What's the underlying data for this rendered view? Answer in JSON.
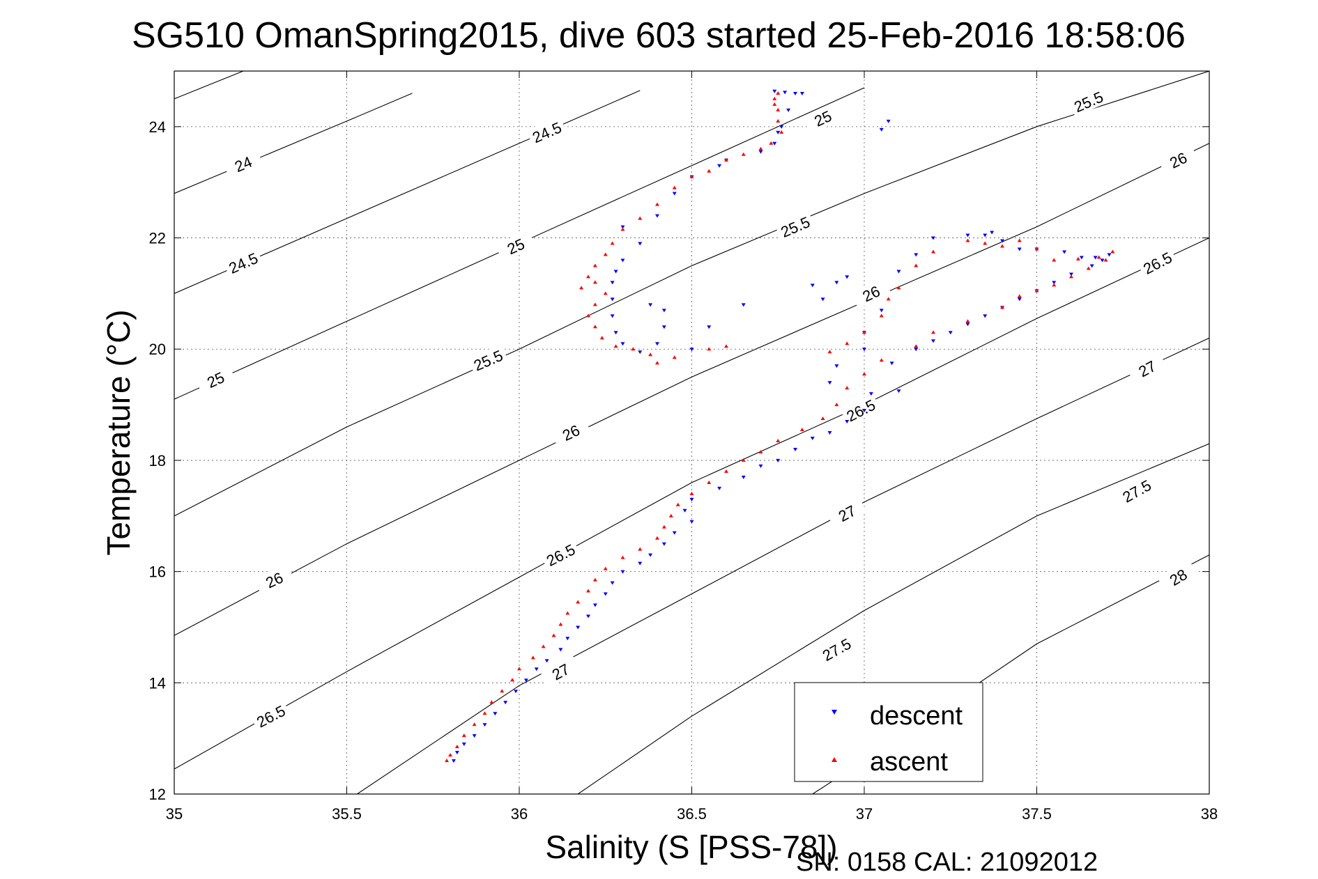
{
  "chart_data": {
    "type": "scatter",
    "title": "SG510 OmanSpring2015, dive 603 started 25-Feb-2016 18:58:06",
    "xlabel": "Salinity (S [PSS-78])",
    "ylabel": "Temperature (°C)",
    "xlim": [
      35,
      38
    ],
    "ylim": [
      12,
      25
    ],
    "x_ticks": [
      35,
      35.5,
      36,
      36.5,
      37,
      37.5,
      38
    ],
    "x_tick_labels": [
      "35",
      "35.5",
      "36",
      "36.5",
      "37",
      "37.5",
      "38"
    ],
    "y_ticks": [
      12,
      14,
      16,
      18,
      20,
      22,
      24
    ],
    "y_tick_labels": [
      "12",
      "14",
      "16",
      "18",
      "20",
      "22",
      "24"
    ],
    "grid": true,
    "legend_position": "bottom-right",
    "footer": "SN: 0158  CAL: 21092012",
    "isopycnals": {
      "line_color": "#000000",
      "lines": [
        {
          "label": "24",
          "points": [
            [
              35.0,
              22.8
            ],
            [
              35.5,
              24.1
            ],
            [
              35.69,
              24.6
            ]
          ],
          "label_at": [
            [
              35.2,
              23.33
            ]
          ]
        },
        {
          "label": "24.5",
          "points": [
            [
              35.0,
              24.5
            ],
            [
              35.2,
              25.0
            ]
          ],
          "label_at": []
        },
        {
          "label": "24.5",
          "points": [
            [
              35.0,
              21.0
            ],
            [
              35.5,
              22.35
            ],
            [
              36.0,
              23.7
            ],
            [
              36.35,
              24.65
            ]
          ],
          "label_at": [
            [
              35.2,
              21.55
            ],
            [
              36.08,
              23.9
            ]
          ]
        },
        {
          "label": "25",
          "points": [
            [
              35.0,
              19.1
            ],
            [
              35.5,
              20.5
            ],
            [
              36.0,
              21.9
            ],
            [
              36.5,
              23.3
            ],
            [
              37.0,
              24.7
            ]
          ],
          "label_at": [
            [
              35.12,
              19.45
            ],
            [
              35.99,
              21.85
            ],
            [
              36.88,
              24.15
            ]
          ]
        },
        {
          "label": "25.5",
          "points": [
            [
              35.0,
              17.0
            ],
            [
              35.5,
              18.6
            ],
            [
              36.0,
              20.0
            ],
            [
              36.5,
              21.5
            ],
            [
              37.0,
              22.8
            ],
            [
              37.5,
              24.0
            ],
            [
              38.0,
              25.0
            ]
          ],
          "label_at": [
            [
              35.91,
              19.8
            ],
            [
              36.8,
              22.2
            ],
            [
              37.65,
              24.45
            ]
          ]
        },
        {
          "label": "26",
          "points": [
            [
              35.0,
              14.85
            ],
            [
              35.5,
              16.5
            ],
            [
              36.0,
              18.0
            ],
            [
              36.5,
              19.5
            ],
            [
              37.0,
              20.85
            ],
            [
              37.5,
              22.2
            ],
            [
              38.0,
              23.7
            ]
          ],
          "label_at": [
            [
              35.29,
              15.85
            ],
            [
              36.15,
              18.5
            ],
            [
              37.02,
              21.0
            ],
            [
              37.91,
              23.4
            ]
          ]
        },
        {
          "label": "26.5",
          "points": [
            [
              35.0,
              12.45
            ],
            [
              35.5,
              14.2
            ],
            [
              36.0,
              15.9
            ],
            [
              36.5,
              17.6
            ],
            [
              37.0,
              19.0
            ],
            [
              37.5,
              20.55
            ],
            [
              38.0,
              22.0
            ]
          ],
          "label_at": [
            [
              35.28,
              13.4
            ],
            [
              36.12,
              16.3
            ],
            [
              36.99,
              18.9
            ],
            [
              37.85,
              21.55
            ]
          ]
        },
        {
          "label": "27",
          "points": [
            [
              35.53,
              12.0
            ],
            [
              36.0,
              13.95
            ],
            [
              36.5,
              15.6
            ],
            [
              37.0,
              17.25
            ],
            [
              37.5,
              18.75
            ],
            [
              38.0,
              20.2
            ]
          ],
          "label_at": [
            [
              36.12,
              14.2
            ],
            [
              36.95,
              17.05
            ],
            [
              37.82,
              19.65
            ]
          ]
        },
        {
          "label": "27.5",
          "points": [
            [
              36.17,
              12.0
            ],
            [
              36.5,
              13.4
            ],
            [
              37.0,
              15.3
            ],
            [
              37.5,
              17.0
            ],
            [
              38.0,
              18.3
            ]
          ],
          "label_at": [
            [
              36.92,
              14.6
            ],
            [
              37.79,
              17.45
            ]
          ]
        },
        {
          "label": "28",
          "points": [
            [
              36.85,
              12.0
            ],
            [
              37.0,
              12.6
            ],
            [
              37.5,
              14.7
            ],
            [
              38.0,
              16.3
            ]
          ],
          "label_at": [
            [
              37.91,
              15.9
            ]
          ]
        }
      ]
    },
    "series": [
      {
        "name": "descent",
        "color": "#0000ff",
        "marker": "triangle-down",
        "points": [
          [
            36.8,
            24.6
          ],
          [
            36.77,
            24.62
          ],
          [
            36.74,
            24.64
          ],
          [
            36.82,
            24.6
          ],
          [
            36.78,
            24.3
          ],
          [
            36.76,
            24.0
          ],
          [
            36.75,
            23.9
          ],
          [
            36.74,
            23.7
          ],
          [
            36.7,
            23.55
          ],
          [
            36.6,
            23.4
          ],
          [
            36.58,
            23.3
          ],
          [
            36.5,
            23.1
          ],
          [
            36.45,
            22.8
          ],
          [
            36.4,
            22.4
          ],
          [
            36.3,
            22.2
          ],
          [
            36.35,
            21.9
          ],
          [
            36.3,
            21.6
          ],
          [
            36.28,
            21.4
          ],
          [
            36.27,
            21.2
          ],
          [
            36.27,
            20.9
          ],
          [
            36.27,
            20.6
          ],
          [
            36.28,
            20.3
          ],
          [
            36.3,
            20.1
          ],
          [
            36.35,
            19.95
          ],
          [
            36.4,
            20.1
          ],
          [
            36.42,
            20.4
          ],
          [
            36.42,
            20.7
          ],
          [
            36.38,
            20.8
          ],
          [
            36.5,
            20.0
          ],
          [
            36.55,
            20.4
          ],
          [
            36.65,
            20.8
          ],
          [
            36.85,
            21.15
          ],
          [
            36.88,
            20.9
          ],
          [
            36.92,
            21.2
          ],
          [
            36.95,
            21.3
          ],
          [
            36.9,
            19.4
          ],
          [
            36.92,
            19.7
          ],
          [
            37.0,
            20.0
          ],
          [
            37.0,
            20.3
          ],
          [
            37.05,
            20.7
          ],
          [
            37.1,
            21.4
          ],
          [
            37.15,
            21.7
          ],
          [
            37.2,
            22.0
          ],
          [
            37.3,
            22.05
          ],
          [
            37.35,
            22.05
          ],
          [
            37.37,
            22.1
          ],
          [
            37.4,
            21.95
          ],
          [
            37.45,
            21.8
          ],
          [
            37.5,
            21.8
          ],
          [
            37.58,
            21.75
          ],
          [
            37.63,
            21.65
          ],
          [
            37.67,
            21.65
          ],
          [
            37.71,
            21.7
          ],
          [
            37.69,
            21.6
          ],
          [
            37.66,
            21.5
          ],
          [
            37.6,
            21.35
          ],
          [
            37.55,
            21.2
          ],
          [
            37.5,
            21.05
          ],
          [
            37.45,
            20.9
          ],
          [
            37.4,
            20.75
          ],
          [
            37.35,
            20.6
          ],
          [
            37.3,
            20.45
          ],
          [
            37.25,
            20.3
          ],
          [
            37.2,
            20.15
          ],
          [
            37.15,
            20.0
          ],
          [
            37.08,
            19.75
          ],
          [
            37.1,
            19.25
          ],
          [
            37.02,
            19.2
          ],
          [
            37.0,
            18.9
          ],
          [
            36.95,
            18.7
          ],
          [
            36.9,
            18.5
          ],
          [
            36.85,
            18.4
          ],
          [
            36.8,
            18.2
          ],
          [
            36.75,
            18.0
          ],
          [
            36.7,
            17.9
          ],
          [
            36.65,
            17.7
          ],
          [
            36.58,
            17.5
          ],
          [
            36.5,
            17.3
          ],
          [
            36.48,
            17.1
          ],
          [
            36.5,
            16.9
          ],
          [
            36.45,
            16.7
          ],
          [
            36.42,
            16.5
          ],
          [
            36.38,
            16.3
          ],
          [
            36.35,
            16.15
          ],
          [
            36.3,
            16.0
          ],
          [
            36.27,
            15.8
          ],
          [
            36.25,
            15.6
          ],
          [
            36.22,
            15.4
          ],
          [
            36.2,
            15.2
          ],
          [
            36.17,
            15.0
          ],
          [
            36.14,
            14.8
          ],
          [
            36.12,
            14.6
          ],
          [
            36.08,
            14.4
          ],
          [
            36.05,
            14.25
          ],
          [
            36.02,
            14.05
          ],
          [
            35.99,
            13.85
          ],
          [
            35.96,
            13.65
          ],
          [
            35.93,
            13.45
          ],
          [
            35.9,
            13.25
          ],
          [
            35.87,
            13.05
          ],
          [
            35.84,
            12.9
          ],
          [
            35.82,
            12.75
          ],
          [
            35.81,
            12.6
          ],
          [
            37.07,
            24.1
          ],
          [
            37.05,
            23.95
          ]
        ]
      },
      {
        "name": "ascent",
        "color": "#ff0000",
        "marker": "triangle-up",
        "points": [
          [
            36.75,
            24.6
          ],
          [
            36.74,
            24.5
          ],
          [
            36.74,
            24.4
          ],
          [
            36.75,
            24.3
          ],
          [
            36.75,
            24.1
          ],
          [
            36.76,
            23.9
          ],
          [
            36.73,
            23.7
          ],
          [
            36.7,
            23.6
          ],
          [
            36.65,
            23.5
          ],
          [
            36.6,
            23.4
          ],
          [
            36.55,
            23.2
          ],
          [
            36.5,
            23.1
          ],
          [
            36.45,
            22.9
          ],
          [
            36.4,
            22.6
          ],
          [
            36.35,
            22.35
          ],
          [
            36.3,
            22.15
          ],
          [
            36.27,
            21.9
          ],
          [
            36.25,
            21.7
          ],
          [
            36.22,
            21.5
          ],
          [
            36.2,
            21.3
          ],
          [
            36.18,
            21.1
          ],
          [
            36.22,
            21.2
          ],
          [
            36.25,
            21.0
          ],
          [
            36.22,
            20.8
          ],
          [
            36.2,
            20.6
          ],
          [
            36.22,
            20.4
          ],
          [
            36.24,
            20.2
          ],
          [
            36.28,
            20.05
          ],
          [
            36.33,
            20.0
          ],
          [
            36.38,
            19.9
          ],
          [
            36.4,
            19.75
          ],
          [
            36.45,
            19.85
          ],
          [
            36.55,
            20.0
          ],
          [
            36.6,
            20.05
          ],
          [
            36.9,
            19.95
          ],
          [
            36.95,
            20.1
          ],
          [
            37.0,
            20.3
          ],
          [
            37.05,
            20.6
          ],
          [
            37.07,
            20.9
          ],
          [
            37.1,
            21.1
          ],
          [
            37.15,
            21.5
          ],
          [
            37.2,
            21.75
          ],
          [
            37.3,
            21.95
          ],
          [
            37.35,
            21.9
          ],
          [
            37.4,
            21.85
          ],
          [
            37.45,
            21.95
          ],
          [
            37.5,
            21.8
          ],
          [
            37.55,
            21.6
          ],
          [
            37.62,
            21.62
          ],
          [
            37.68,
            21.65
          ],
          [
            37.72,
            21.75
          ],
          [
            37.7,
            21.6
          ],
          [
            37.65,
            21.45
          ],
          [
            37.6,
            21.3
          ],
          [
            37.55,
            21.15
          ],
          [
            37.5,
            21.05
          ],
          [
            37.45,
            20.95
          ],
          [
            37.4,
            20.75
          ],
          [
            37.3,
            20.5
          ],
          [
            37.2,
            20.3
          ],
          [
            37.15,
            20.05
          ],
          [
            37.05,
            19.8
          ],
          [
            37.0,
            19.55
          ],
          [
            36.95,
            19.3
          ],
          [
            36.92,
            19.0
          ],
          [
            36.88,
            18.75
          ],
          [
            36.82,
            18.55
          ],
          [
            36.75,
            18.35
          ],
          [
            36.7,
            18.15
          ],
          [
            36.65,
            18.0
          ],
          [
            36.6,
            17.8
          ],
          [
            36.55,
            17.6
          ],
          [
            36.5,
            17.4
          ],
          [
            36.46,
            17.2
          ],
          [
            36.44,
            17.0
          ],
          [
            36.42,
            16.8
          ],
          [
            36.4,
            16.6
          ],
          [
            36.35,
            16.4
          ],
          [
            36.3,
            16.25
          ],
          [
            36.25,
            16.05
          ],
          [
            36.22,
            15.85
          ],
          [
            36.2,
            15.65
          ],
          [
            36.17,
            15.45
          ],
          [
            36.14,
            15.25
          ],
          [
            36.12,
            15.05
          ],
          [
            36.1,
            14.85
          ],
          [
            36.07,
            14.65
          ],
          [
            36.04,
            14.45
          ],
          [
            36.0,
            14.25
          ],
          [
            35.98,
            14.05
          ],
          [
            35.95,
            13.85
          ],
          [
            35.92,
            13.65
          ],
          [
            35.9,
            13.45
          ],
          [
            35.87,
            13.25
          ],
          [
            35.84,
            13.05
          ],
          [
            35.82,
            12.85
          ],
          [
            35.8,
            12.7
          ],
          [
            35.79,
            12.6
          ]
        ]
      }
    ]
  }
}
